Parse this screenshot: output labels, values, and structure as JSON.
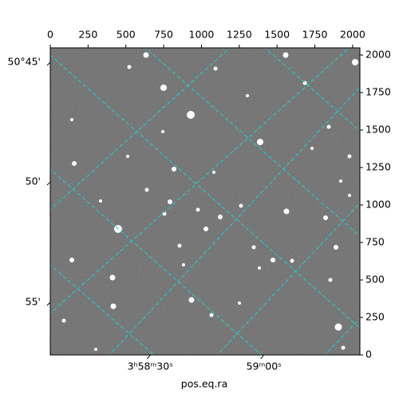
{
  "chart_data": {
    "type": "image",
    "x_label": "pos.eq.ra",
    "xlim": [
      0,
      2048
    ],
    "ylim": [
      0,
      2048
    ],
    "xticks": [
      0,
      250,
      500,
      750,
      1000,
      1250,
      1500,
      1750,
      2000
    ],
    "yticks": [
      0,
      250,
      500,
      750,
      1000,
      1250,
      1500,
      1750,
      2000
    ],
    "ra_ticks": [
      {
        "value": 661,
        "label": "3ʰ58ᵐ30ˢ"
      },
      {
        "value": 1413,
        "label": "59ᵐ00ˢ"
      }
    ],
    "dec_ticks": [
      {
        "value": 1952,
        "label": "50°45'"
      },
      {
        "value": 1154,
        "label": "50'"
      },
      {
        "value": 351,
        "label": "55'"
      }
    ]
  }
}
